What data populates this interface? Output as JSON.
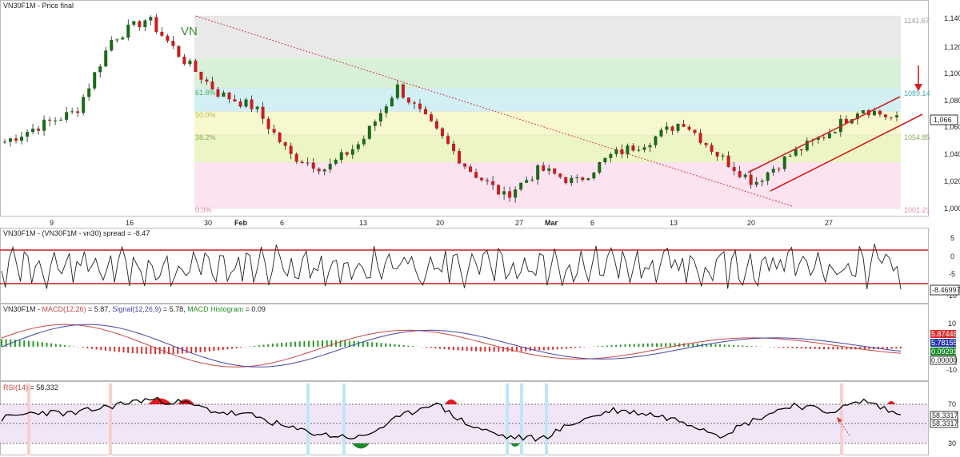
{
  "panels": {
    "price": {
      "title": "VN30F1M - Price final",
      "watermark": "VN",
      "y_ticks": [
        "1,140",
        "1,120",
        "1,100",
        "1,080",
        "1,060",
        "1,040",
        "1,020",
        "1,000"
      ],
      "last_value": "1,066",
      "fib_levels": [
        {
          "label": "1141.67",
          "value": 1141.67,
          "color": "#e6e6e6"
        },
        {
          "label": "61.8%",
          "value": 1111,
          "color": "#d6f1d6"
        },
        {
          "label": "1089.14",
          "value": 1089.14,
          "color": "#d3f1f4"
        },
        {
          "label": "50.0%",
          "value": 1072,
          "color": "#fbfbd4"
        },
        {
          "label": "38.2%",
          "value": 1055,
          "color": "#eef7c8"
        },
        {
          "label": "1054.85",
          "value": 1054.85,
          "color": "#fbe4f0"
        },
        {
          "label": "0.0%",
          "value": 1001.21,
          "color": "#fbe4f0"
        },
        {
          "label": "1001.21",
          "value": 1001.21,
          "color": "#fbe4f0"
        }
      ]
    },
    "spread": {
      "title": "VN30F1M - (VN30F1M - vn30) spread = -8.47",
      "y_ticks": [
        "5",
        "0",
        "-5",
        "-10"
      ],
      "last_value": "-8.46997"
    },
    "macd": {
      "title_prefix": "VN30F1M - ",
      "title_macd": "MACD(12,26)",
      "title_macd_val": " = 5.87, ",
      "title_signal": "Signal(12,26,9)",
      "title_signal_val": " = 5.78, ",
      "title_hist": "MACD Histogram",
      "title_hist_val": " = 0.09",
      "y_ticks": [
        "10",
        "5",
        "0",
        "-5",
        "-10"
      ],
      "values": [
        "5.87448",
        "5.78155",
        "0.09291",
        "0.00000"
      ]
    },
    "rsi": {
      "title_name": "RSI(14)",
      "title_val": " = 58.332",
      "y_ticks": [
        "70",
        "50",
        "30"
      ],
      "values": [
        "58.3317",
        "58.3317"
      ]
    }
  },
  "x_axis_labels": [
    "9",
    "16",
    "30",
    "Feb",
    "6",
    "13",
    "20",
    "27",
    "Mar",
    "6",
    "13",
    "20",
    "27"
  ],
  "colors": {
    "up_candle": "#1a6a1a",
    "down_candle": "#c81e1e",
    "trendline": "#d43a3a",
    "macd_line": "#c44",
    "signal_line": "#44a",
    "rsi_line": "#000000",
    "rsi_band": "#f1e6f7"
  },
  "chart_data": [
    {
      "type": "candlestick",
      "title": "VN30F1M - Price final",
      "ylim": [
        995,
        1150
      ],
      "x": [
        "9",
        "16",
        "30",
        "Feb",
        "6",
        "13",
        "20",
        "27",
        "Mar",
        "6",
        "13",
        "20",
        "27"
      ],
      "close_approx": [
        1050,
        1062,
        1072,
        1125,
        1140,
        1110,
        1085,
        1075,
        1040,
        1030,
        1050,
        1090,
        1060,
        1030,
        1010,
        1030,
        1020,
        1040,
        1050,
        1065,
        1040,
        1020,
        1040,
        1055,
        1075,
        1066
      ],
      "last": 1066
    },
    {
      "type": "line",
      "title": "VN30F1M - (VN30F1M - vn30) spread = -8.47",
      "ylim": [
        -12,
        8
      ],
      "last": -8.47
    },
    {
      "type": "line",
      "title": "VN30F1M - MACD(12,26) = 5.87, Signal(12,26,9) = 5.78, MACD Histogram = 0.09",
      "ylim": [
        -13,
        14
      ],
      "series": [
        {
          "name": "MACD(12,26)",
          "last": 5.87
        },
        {
          "name": "Signal(12,26,9)",
          "last": 5.78
        },
        {
          "name": "MACD Histogram",
          "last": 0.09
        }
      ]
    },
    {
      "type": "line",
      "title": "RSI(14) = 58.332",
      "ylim": [
        25,
        80
      ],
      "last": 58.332
    }
  ]
}
